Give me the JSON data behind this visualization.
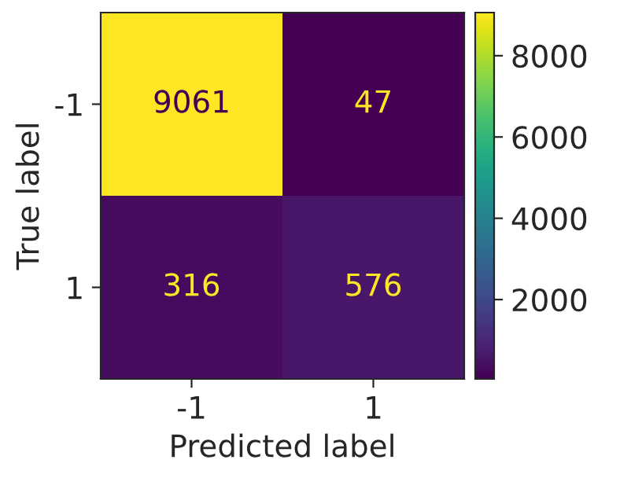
{
  "chart_data": {
    "type": "heatmap",
    "xlabel": "Predicted label",
    "ylabel": "True label",
    "categories": [
      "-1",
      "1"
    ],
    "y_categories": [
      "-1",
      "1"
    ],
    "cells": [
      [
        9061,
        47
      ],
      [
        316,
        576
      ]
    ],
    "data_labels": true,
    "clim": [
      47,
      9061
    ],
    "cticks": [
      2000,
      4000,
      6000,
      8000
    ]
  }
}
